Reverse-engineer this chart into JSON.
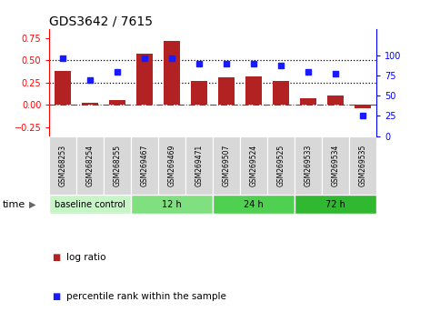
{
  "title": "GDS3642 / 7615",
  "categories": [
    "GSM268253",
    "GSM268254",
    "GSM268255",
    "GSM269467",
    "GSM269469",
    "GSM269471",
    "GSM269507",
    "GSM269524",
    "GSM269525",
    "GSM269533",
    "GSM269534",
    "GSM269535"
  ],
  "log_ratio": [
    0.38,
    0.02,
    0.05,
    0.57,
    0.72,
    0.27,
    0.31,
    0.32,
    0.27,
    0.07,
    0.1,
    -0.04
  ],
  "percentile_rank": [
    97,
    70,
    80,
    97,
    97,
    90,
    90,
    90,
    88,
    80,
    78,
    25
  ],
  "bar_color": "#b22222",
  "dot_color": "#1a1aff",
  "ylim_left": [
    -0.35,
    0.85
  ],
  "ylim_right": [
    0,
    133.33
  ],
  "yticks_left": [
    -0.25,
    0.0,
    0.25,
    0.5,
    0.75
  ],
  "yticks_right": [
    0,
    25,
    50,
    75,
    100
  ],
  "hlines": [
    0.25,
    0.5
  ],
  "zero_line_color": "#b22222",
  "hline_color": "black",
  "groups": [
    {
      "label": "baseline control",
      "start": 0,
      "end": 3,
      "color": "#c8f5c8"
    },
    {
      "label": "12 h",
      "start": 3,
      "end": 6,
      "color": "#80e080"
    },
    {
      "label": "24 h",
      "start": 6,
      "end": 9,
      "color": "#50d050"
    },
    {
      "label": "72 h",
      "start": 9,
      "end": 12,
      "color": "#30b830"
    }
  ],
  "time_label": "time",
  "legend_bar_label": "log ratio",
  "legend_dot_label": "percentile rank within the sample",
  "bg_color": "#ffffff",
  "plot_bg": "#ffffff"
}
